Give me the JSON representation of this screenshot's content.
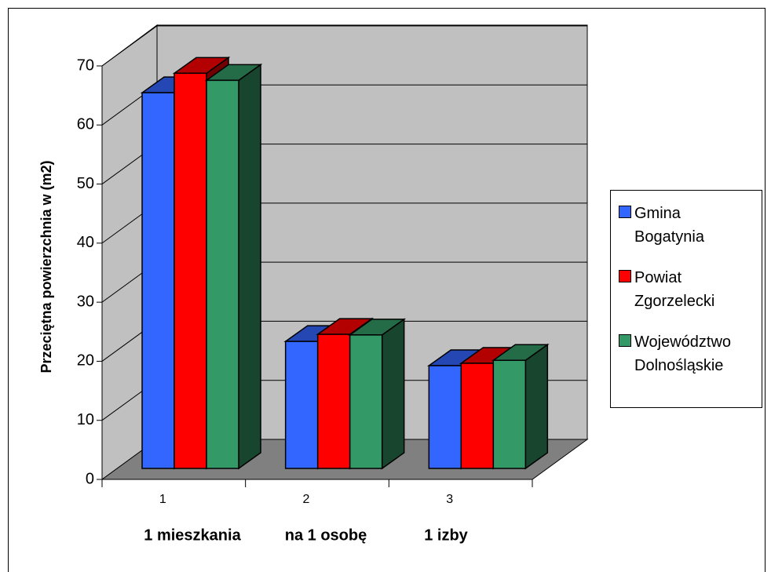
{
  "chart_data": {
    "type": "bar3d",
    "ylabel": "Przeciętna powierzchnia w (m2)",
    "categories": [
      "1",
      "2",
      "3"
    ],
    "category_descriptions": [
      "1 mieszkania",
      "na 1 osobę",
      "1 izby"
    ],
    "series": [
      {
        "name": "Gmina Bogatynia",
        "color": "#3366ff",
        "values": [
          63.6,
          21.5,
          17.4
        ]
      },
      {
        "name": "Powiat Zgorzelecki",
        "color": "#ff0000",
        "values": [
          66.9,
          22.7,
          17.8
        ]
      },
      {
        "name": "Województwo Dolnośląskie",
        "color": "#339966",
        "values": [
          65.7,
          22.6,
          18.3
        ]
      }
    ],
    "ylim": [
      0,
      70
    ],
    "yticks": [
      0,
      10,
      20,
      30,
      40,
      50,
      60,
      70
    ],
    "grid": true,
    "legend": "right"
  }
}
